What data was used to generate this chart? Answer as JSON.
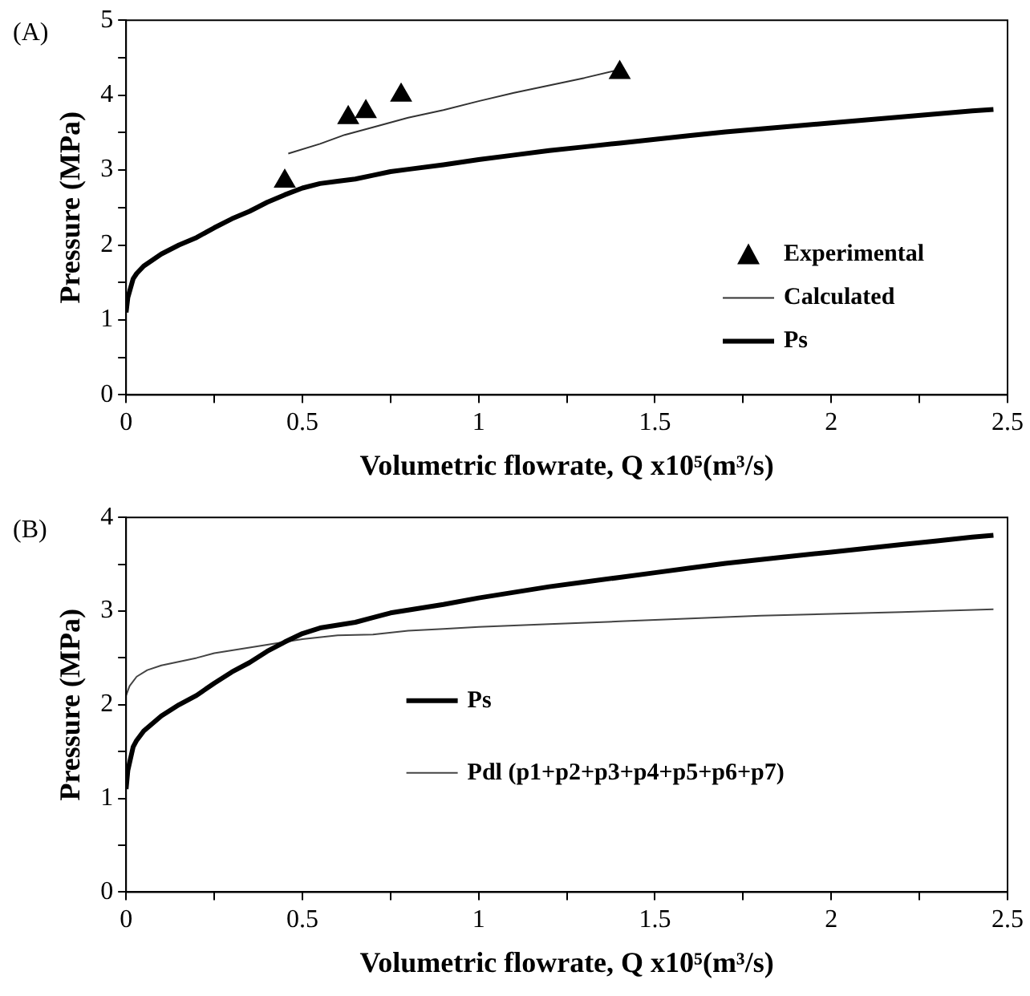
{
  "chart_data": [
    {
      "type": "line",
      "title": "(A)",
      "xlabel": "Volumetric flowrate, Q x10⁵(m³/s)",
      "ylabel": "Pressure (MPa)",
      "xlim": [
        0,
        2.5
      ],
      "xticks": [
        0,
        {
          "value": 0.25,
          "label": null
        },
        0.5,
        {
          "value": 0.75,
          "label": null
        },
        1,
        {
          "value": 1.25,
          "label": null
        },
        1.5,
        {
          "value": 1.75,
          "label": null
        },
        2,
        {
          "value": 2.25,
          "label": null
        },
        2.5
      ],
      "ylim": [
        0,
        5
      ],
      "yticks": [
        0,
        {
          "value": 0.5,
          "label": null
        },
        1,
        {
          "value": 1.5,
          "label": null
        },
        2,
        {
          "value": 2.5,
          "label": null
        },
        3,
        {
          "value": 3.5,
          "label": null
        },
        4,
        {
          "value": 4.5,
          "label": null
        },
        5
      ],
      "grid": false,
      "legend": "bottom right",
      "series": [
        {
          "name": "Experimental",
          "type": "scatter",
          "marker": "triangle",
          "color": "#000000",
          "x": [
            0.45,
            0.63,
            0.68,
            0.78,
            1.4
          ],
          "values": [
            2.85,
            3.7,
            3.78,
            4.0,
            4.3
          ]
        },
        {
          "name": "Calculated",
          "marker": "none",
          "color": "#333333",
          "x": [
            0.46,
            0.55,
            0.62,
            0.7,
            0.8,
            0.9,
            1.0,
            1.1,
            1.2,
            1.3,
            1.39
          ],
          "values": [
            3.22,
            3.35,
            3.47,
            3.57,
            3.7,
            3.8,
            3.92,
            4.03,
            4.13,
            4.23,
            4.33
          ]
        },
        {
          "name": "Ps",
          "marker": "none",
          "color": "#000000",
          "x": [
            0,
            0.005,
            0.02,
            0.03,
            0.05,
            0.1,
            0.15,
            0.2,
            0.25,
            0.3,
            0.35,
            0.4,
            0.45,
            0.5,
            0.55,
            0.6,
            0.65,
            0.7,
            0.75,
            0.8,
            0.9,
            1.0,
            1.1,
            1.2,
            1.3,
            1.4,
            1.5,
            1.6,
            1.7,
            1.8,
            1.9,
            2.0,
            2.1,
            2.2,
            2.3,
            2.4,
            2.46
          ],
          "values": [
            1.1,
            1.3,
            1.55,
            1.62,
            1.72,
            1.88,
            2.0,
            2.1,
            2.23,
            2.35,
            2.45,
            2.57,
            2.67,
            2.76,
            2.82,
            2.85,
            2.88,
            2.93,
            2.98,
            3.01,
            3.07,
            3.14,
            3.2,
            3.26,
            3.31,
            3.36,
            3.41,
            3.46,
            3.51,
            3.55,
            3.59,
            3.63,
            3.67,
            3.71,
            3.75,
            3.79,
            3.81
          ]
        }
      ]
    },
    {
      "type": "line",
      "title": "(B)",
      "xlabel": "Volumetric flowrate, Q x10⁵(m³/s)",
      "ylabel": "Pressure (MPa)",
      "xlim": [
        0,
        2.5
      ],
      "xticks": [
        0,
        {
          "value": 0.25,
          "label": null
        },
        0.5,
        {
          "value": 0.75,
          "label": null
        },
        1,
        {
          "value": 1.25,
          "label": null
        },
        1.5,
        {
          "value": 1.75,
          "label": null
        },
        2,
        {
          "value": 2.25,
          "label": null
        },
        2.5
      ],
      "ylim": [
        0,
        4
      ],
      "yticks": [
        0,
        {
          "value": 0.5,
          "label": null
        },
        1,
        {
          "value": 1.5,
          "label": null
        },
        2,
        {
          "value": 2.5,
          "label": null
        },
        3,
        {
          "value": 3.5,
          "label": null
        },
        4
      ],
      "grid": false,
      "legend": "center",
      "series": [
        {
          "name": "Ps",
          "marker": "none",
          "color": "#000000",
          "x": [
            0,
            0.005,
            0.02,
            0.03,
            0.05,
            0.1,
            0.15,
            0.2,
            0.25,
            0.3,
            0.35,
            0.4,
            0.45,
            0.5,
            0.55,
            0.6,
            0.65,
            0.7,
            0.75,
            0.8,
            0.9,
            1.0,
            1.1,
            1.2,
            1.3,
            1.4,
            1.5,
            1.6,
            1.7,
            1.8,
            1.9,
            2.0,
            2.1,
            2.2,
            2.3,
            2.4,
            2.46
          ],
          "values": [
            1.1,
            1.3,
            1.55,
            1.62,
            1.72,
            1.88,
            2.0,
            2.1,
            2.23,
            2.35,
            2.45,
            2.57,
            2.67,
            2.76,
            2.82,
            2.85,
            2.88,
            2.93,
            2.98,
            3.01,
            3.07,
            3.14,
            3.2,
            3.26,
            3.31,
            3.36,
            3.41,
            3.46,
            3.51,
            3.55,
            3.59,
            3.63,
            3.67,
            3.71,
            3.75,
            3.79,
            3.81
          ]
        },
        {
          "name": "Pdl (p1+p2+p3+p4+p5+p6+p7)",
          "marker": "none",
          "color": "#444444",
          "x": [
            0,
            0.01,
            0.03,
            0.06,
            0.1,
            0.2,
            0.25,
            0.3,
            0.4,
            0.5,
            0.6,
            0.7,
            0.8,
            0.9,
            1.0,
            1.2,
            1.4,
            1.6,
            1.8,
            2.0,
            2.2,
            2.46
          ],
          "values": [
            2.1,
            2.2,
            2.3,
            2.37,
            2.42,
            2.5,
            2.55,
            2.58,
            2.64,
            2.7,
            2.74,
            2.75,
            2.79,
            2.81,
            2.83,
            2.86,
            2.89,
            2.92,
            2.95,
            2.97,
            2.99,
            3.02
          ]
        }
      ]
    }
  ]
}
